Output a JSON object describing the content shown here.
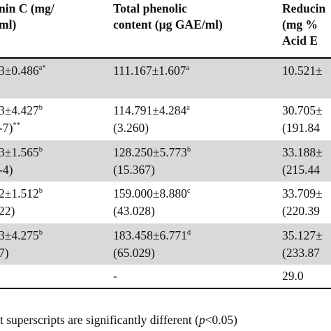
{
  "header": {
    "col1_line1": "nin C (mg/",
    "col1_line2": "ml)",
    "col2_line1": "Total phenolic",
    "col2_line2": "content (µg GAE/ml)",
    "col3_line1": "Reducin",
    "col3_line2": "(mg %",
    "col3_line3": "Acid E"
  },
  "rows": [
    {
      "shaded": true,
      "c1_main": "3±0.486",
      "c1_sup": "a*",
      "c1_sub": "",
      "c2_main": "111.167±1.607",
      "c2_sup": "a",
      "c2_sub": "",
      "c3_main": "10.521±",
      "c3_sub": ""
    },
    {
      "shaded": false,
      "c1_main": "3±4.427",
      "c1_sup": "b",
      "c1_sub": "-7)",
      "c1_sub_sup": "**",
      "c2_main": "114.791±4.284",
      "c2_sup": "a",
      "c2_sub": "(3.260)",
      "c3_main": "30.705±",
      "c3_sub": "(191.84"
    },
    {
      "shaded": true,
      "c1_main": "3±1.565",
      "c1_sup": "b",
      "c1_sub": "-4)",
      "c2_main": "128.250±5.773",
      "c2_sup": "b",
      "c2_sub": "(15.367)",
      "c3_main": "33.188±",
      "c3_sub": "(215.44"
    },
    {
      "shaded": false,
      "c1_main": "2±1.512",
      "c1_sup": "b",
      "c1_sub": "22)",
      "c2_main": "159.000±8.880",
      "c2_sup": "c",
      "c2_sub": "(43.028)",
      "c3_main": "33.709±",
      "c3_sub": "(220.39"
    },
    {
      "shaded": true,
      "c1_main": "3±4.275",
      "c1_sup": "b",
      "c1_sub": "7)",
      "c2_main": "183.458±6.771",
      "c2_sup": "d",
      "c2_sub": "(65.029)",
      "c3_main": "35.127±",
      "c3_sub": "(233.87"
    },
    {
      "shaded": false,
      "c1_main": "",
      "c2_main": "-",
      "c3_main": "29.0"
    }
  ],
  "footer": {
    "prefix": "t superscripts are significantly different (",
    "p_symbol": "p",
    "suffix": "<0.05)"
  }
}
